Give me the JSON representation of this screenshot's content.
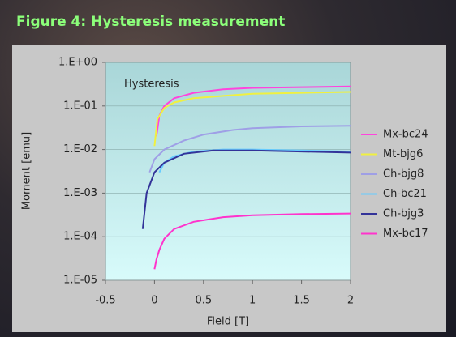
{
  "chart_data": {
    "type": "line",
    "title": "Figure 4: Hysteresis measurement",
    "annotation": "Hysteresis",
    "x_label": "Field [T]",
    "y_label": "Moment [emu]",
    "xlim": [
      -0.5,
      2
    ],
    "xticks": [
      -0.5,
      0,
      0.5,
      1,
      1.5,
      2
    ],
    "ylim": [
      1e-05,
      1
    ],
    "y_log": true,
    "yticks": [
      {
        "value": 1,
        "label": "1.E+00"
      },
      {
        "value": 0.1,
        "label": "1.E-01"
      },
      {
        "value": 0.01,
        "label": "1.E-02"
      },
      {
        "value": 0.001,
        "label": "1.E-03"
      },
      {
        "value": 0.0001,
        "label": "1.E-04"
      },
      {
        "value": 1e-05,
        "label": "1.E-05"
      }
    ],
    "grid": true,
    "legend": "right",
    "series": [
      {
        "name": "Mx-bc24",
        "color": "#ff44dd",
        "x": [
          0.02,
          0.05,
          0.1,
          0.2,
          0.4,
          0.7,
          1,
          1.5,
          2
        ],
        "values": [
          0.02,
          0.06,
          0.1,
          0.15,
          0.2,
          0.24,
          0.26,
          0.27,
          0.28
        ]
      },
      {
        "name": "Mt-bjg6",
        "color": "#f0f040",
        "x": [
          0,
          0.03,
          0.1,
          0.2,
          0.4,
          0.7,
          1,
          1.5,
          2
        ],
        "values": [
          0.012,
          0.05,
          0.09,
          0.12,
          0.15,
          0.17,
          0.19,
          0.2,
          0.21
        ]
      },
      {
        "name": "Ch-bjg8",
        "color": "#9f9fe6",
        "x": [
          -0.05,
          0,
          0.1,
          0.3,
          0.5,
          0.8,
          1,
          1.5,
          2
        ],
        "values": [
          0.003,
          0.006,
          0.01,
          0.016,
          0.022,
          0.028,
          0.031,
          0.034,
          0.035
        ]
      },
      {
        "name": "Ch-bc21",
        "color": "#66ccff",
        "x": [
          0.05,
          0.1,
          0.2,
          0.4,
          0.7,
          1,
          1.5,
          2
        ],
        "values": [
          0.003,
          0.005,
          0.007,
          0.009,
          0.01,
          0.01,
          0.0095,
          0.009
        ]
      },
      {
        "name": "Ch-bjg3",
        "color": "#333399",
        "x": [
          -0.12,
          -0.08,
          0,
          0.1,
          0.3,
          0.6,
          1,
          1.5,
          2
        ],
        "values": [
          0.00015,
          0.001,
          0.003,
          0.005,
          0.008,
          0.0095,
          0.0095,
          0.009,
          0.0085
        ]
      },
      {
        "name": "Mx-bc17",
        "color": "#ff33cc",
        "x": [
          0,
          0.02,
          0.05,
          0.1,
          0.2,
          0.4,
          0.7,
          1,
          1.5,
          2
        ],
        "values": [
          1.8e-05,
          3e-05,
          5e-05,
          9e-05,
          0.00015,
          0.00022,
          0.00028,
          0.00031,
          0.00033,
          0.00034
        ]
      }
    ]
  }
}
